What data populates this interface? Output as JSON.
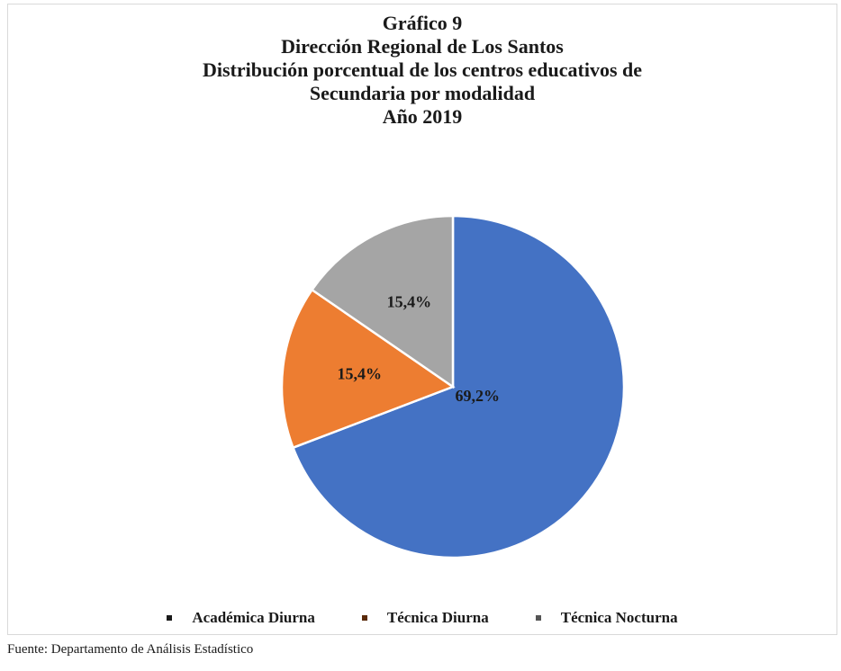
{
  "chart_data": {
    "type": "pie",
    "title_lines": [
      "Gráfico 9",
      "Dirección Regional de Los Santos",
      "Distribución  porcentual  de los centros educativos de",
      "Secundaria  por  modalidad",
      "Año 2019"
    ],
    "categories": [
      "Académica Diurna",
      "Técnica Diurna",
      "Técnica Nocturna"
    ],
    "values": [
      69.2,
      15.4,
      15.4
    ],
    "data_labels": [
      "69,2%",
      "15,4%",
      "15,4%"
    ],
    "colors": [
      "#4472C4",
      "#ED7D31",
      "#A5A5A5"
    ],
    "legend_position": "bottom"
  },
  "source": "Fuente: Departamento de Análisis Estadístico"
}
